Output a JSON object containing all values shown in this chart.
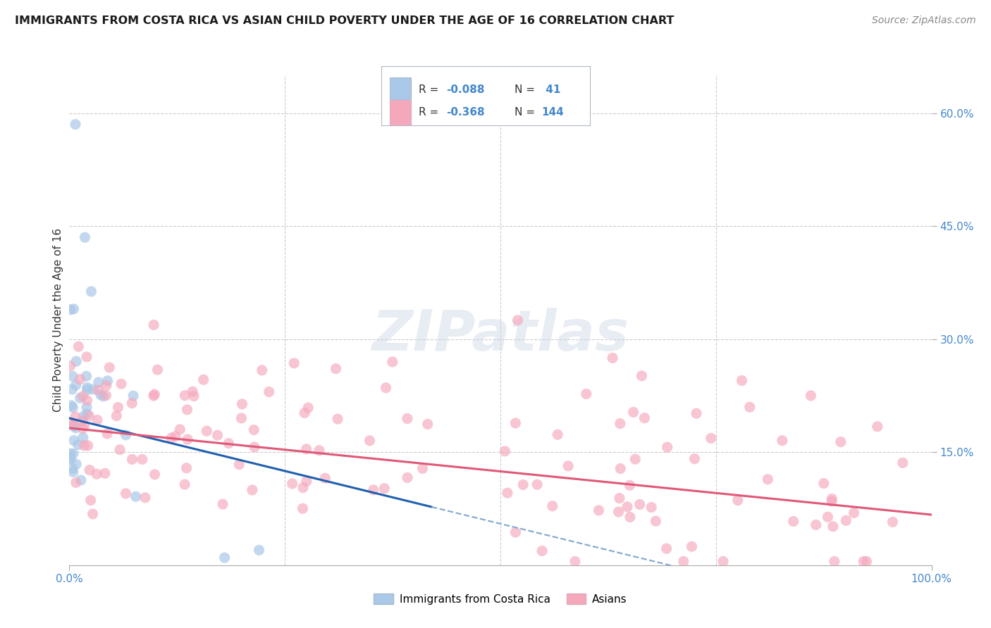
{
  "title": "IMMIGRANTS FROM COSTA RICA VS ASIAN CHILD POVERTY UNDER THE AGE OF 16 CORRELATION CHART",
  "source": "Source: ZipAtlas.com",
  "ylabel": "Child Poverty Under the Age of 16",
  "xlim": [
    0,
    1.0
  ],
  "ylim": [
    0,
    0.65
  ],
  "ytick_labels_right": [
    "60.0%",
    "45.0%",
    "30.0%",
    "15.0%"
  ],
  "ytick_positions_right": [
    0.6,
    0.45,
    0.3,
    0.15
  ],
  "watermark": "ZIPatlas",
  "legend_r1": "-0.088",
  "legend_n1": " 41",
  "legend_r2": "-0.368",
  "legend_n2": "144",
  "color_blue": "#aac8e8",
  "color_pink": "#f5a8bc",
  "color_blue_line": "#2060b0",
  "color_pink_line": "#e05878",
  "color_blue_dashed": "#88aad0",
  "color_text_blue": "#4488cc",
  "color_text_dark": "#333333",
  "color_source": "#888888",
  "grid_color": "#cccccc",
  "background_color": "#ffffff",
  "seed": 42,
  "blue_N": 41,
  "pink_N": 144,
  "blue_intercept": 0.195,
  "blue_slope": -0.28,
  "pink_intercept": 0.182,
  "pink_slope": -0.115,
  "blue_dash_intercept": 0.195,
  "blue_dash_slope": -0.28
}
